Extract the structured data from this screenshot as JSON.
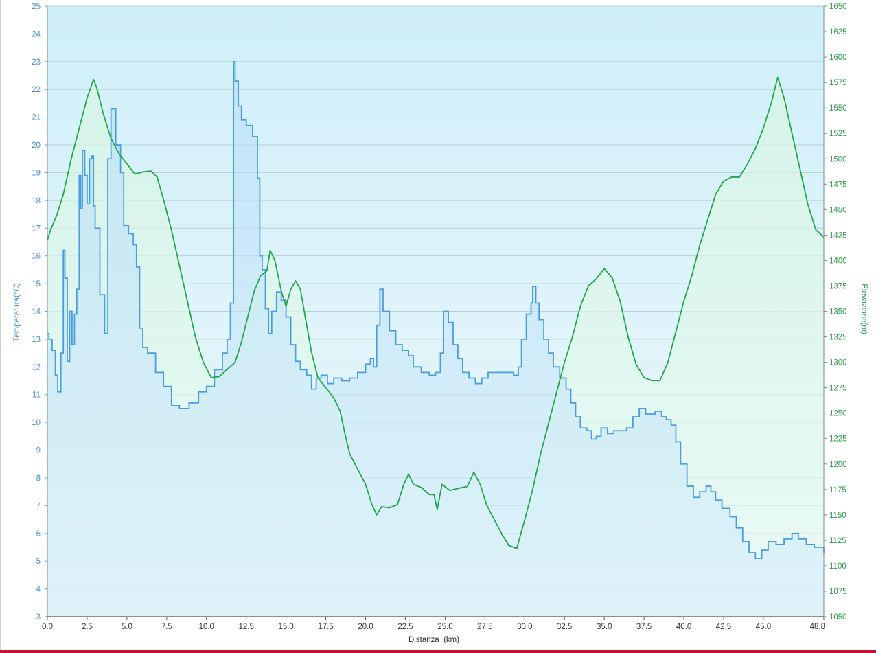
{
  "chart_data": {
    "type": "area",
    "title": "",
    "xlabel": "Distanza  (km)",
    "ylabel_left": "Temperatura(°C)",
    "ylabel_right": "Elevazione(m)",
    "xlim": [
      0,
      48.8
    ],
    "ylim_left": [
      3,
      25
    ],
    "ylim_right": [
      1050,
      1650
    ],
    "x_ticks": [
      "0.0",
      "2.5",
      "5.0",
      "7.5",
      "10.0",
      "12.5",
      "15.0",
      "17.5",
      "20.0",
      "22.5",
      "25.0",
      "27.5",
      "30.0",
      "32.5",
      "35.0",
      "37.5",
      "40.0",
      "42.5",
      "45.0",
      "48.8"
    ],
    "y_left_ticks": [
      "3",
      "4",
      "5",
      "6",
      "7",
      "8",
      "9",
      "10",
      "11",
      "12",
      "13",
      "14",
      "15",
      "16",
      "17",
      "18",
      "19",
      "20",
      "21",
      "22",
      "23",
      "24",
      "25"
    ],
    "y_right_ticks": [
      "1050",
      "1075",
      "1100",
      "1125",
      "1150",
      "1175",
      "1200",
      "1225",
      "1250",
      "1275",
      "1300",
      "1325",
      "1350",
      "1375",
      "1400",
      "1425",
      "1450",
      "1475",
      "1500",
      "1525",
      "1550",
      "1575",
      "1600",
      "1625",
      "1650"
    ],
    "grid": true,
    "series": [
      {
        "name": "Temperatura",
        "axis": "left",
        "color": "#4a9de0",
        "fill": "#bfe4f6",
        "step": true,
        "points": [
          [
            0.0,
            13.2
          ],
          [
            0.1,
            13.0
          ],
          [
            0.3,
            12.6
          ],
          [
            0.5,
            11.7
          ],
          [
            0.65,
            11.1
          ],
          [
            0.85,
            12.5
          ],
          [
            1.0,
            16.2
          ],
          [
            1.1,
            15.2
          ],
          [
            1.25,
            12.2
          ],
          [
            1.4,
            14.0
          ],
          [
            1.55,
            12.8
          ],
          [
            1.7,
            13.9
          ],
          [
            1.85,
            14.8
          ],
          [
            2.0,
            18.9
          ],
          [
            2.1,
            17.7
          ],
          [
            2.2,
            19.8
          ],
          [
            2.35,
            18.9
          ],
          [
            2.5,
            17.9
          ],
          [
            2.65,
            19.5
          ],
          [
            2.8,
            19.6
          ],
          [
            2.9,
            17.8
          ],
          [
            3.0,
            17.0
          ],
          [
            3.3,
            14.6
          ],
          [
            3.6,
            13.2
          ],
          [
            3.8,
            19.5
          ],
          [
            4.0,
            21.3
          ],
          [
            4.3,
            20.0
          ],
          [
            4.6,
            19.0
          ],
          [
            4.8,
            17.1
          ],
          [
            5.1,
            16.8
          ],
          [
            5.4,
            16.4
          ],
          [
            5.6,
            15.6
          ],
          [
            5.8,
            13.4
          ],
          [
            6.0,
            12.7
          ],
          [
            6.3,
            12.5
          ],
          [
            6.8,
            11.8
          ],
          [
            7.3,
            11.3
          ],
          [
            7.8,
            10.6
          ],
          [
            8.3,
            10.5
          ],
          [
            8.9,
            10.7
          ],
          [
            9.5,
            11.1
          ],
          [
            10.0,
            11.3
          ],
          [
            10.5,
            11.9
          ],
          [
            11.0,
            12.5
          ],
          [
            11.3,
            13.0
          ],
          [
            11.5,
            14.3
          ],
          [
            11.7,
            23.0
          ],
          [
            11.8,
            22.3
          ],
          [
            12.0,
            21.4
          ],
          [
            12.2,
            20.9
          ],
          [
            12.5,
            20.7
          ],
          [
            12.9,
            20.3
          ],
          [
            13.2,
            18.8
          ],
          [
            13.35,
            16.0
          ],
          [
            13.5,
            15.5
          ],
          [
            13.7,
            14.1
          ],
          [
            13.9,
            13.2
          ],
          [
            14.1,
            14.0
          ],
          [
            14.4,
            14.7
          ],
          [
            14.7,
            14.4
          ],
          [
            15.0,
            13.8
          ],
          [
            15.3,
            12.8
          ],
          [
            15.6,
            12.2
          ],
          [
            15.9,
            11.9
          ],
          [
            16.3,
            11.7
          ],
          [
            16.6,
            11.2
          ],
          [
            16.9,
            11.6
          ],
          [
            17.2,
            11.7
          ],
          [
            17.6,
            11.4
          ],
          [
            18.0,
            11.6
          ],
          [
            18.5,
            11.5
          ],
          [
            19.0,
            11.6
          ],
          [
            19.5,
            11.8
          ],
          [
            20.0,
            12.1
          ],
          [
            20.3,
            12.3
          ],
          [
            20.5,
            12.0
          ],
          [
            20.7,
            13.5
          ],
          [
            20.9,
            14.8
          ],
          [
            21.1,
            14.0
          ],
          [
            21.5,
            13.3
          ],
          [
            21.9,
            12.8
          ],
          [
            22.3,
            12.6
          ],
          [
            22.7,
            12.4
          ],
          [
            23.0,
            12.0
          ],
          [
            23.5,
            11.8
          ],
          [
            24.0,
            11.7
          ],
          [
            24.4,
            11.8
          ],
          [
            24.7,
            12.5
          ],
          [
            24.9,
            14.0
          ],
          [
            25.2,
            13.6
          ],
          [
            25.5,
            12.8
          ],
          [
            25.8,
            12.3
          ],
          [
            26.1,
            11.8
          ],
          [
            26.5,
            11.6
          ],
          [
            26.9,
            11.4
          ],
          [
            27.3,
            11.6
          ],
          [
            27.7,
            11.8
          ],
          [
            28.5,
            11.8
          ],
          [
            29.3,
            11.7
          ],
          [
            29.6,
            12.0
          ],
          [
            29.8,
            13.0
          ],
          [
            30.1,
            13.9
          ],
          [
            30.4,
            14.3
          ],
          [
            30.5,
            14.9
          ],
          [
            30.7,
            14.3
          ],
          [
            30.9,
            13.7
          ],
          [
            31.2,
            13.0
          ],
          [
            31.5,
            12.5
          ],
          [
            31.8,
            12.0
          ],
          [
            32.2,
            11.6
          ],
          [
            32.6,
            11.2
          ],
          [
            32.9,
            10.7
          ],
          [
            33.2,
            10.2
          ],
          [
            33.5,
            9.8
          ],
          [
            33.9,
            9.7
          ],
          [
            34.2,
            9.4
          ],
          [
            34.5,
            9.5
          ],
          [
            34.8,
            9.8
          ],
          [
            35.2,
            9.6
          ],
          [
            35.6,
            9.7
          ],
          [
            36.0,
            9.7
          ],
          [
            36.4,
            9.8
          ],
          [
            36.8,
            10.2
          ],
          [
            37.2,
            10.5
          ],
          [
            37.6,
            10.3
          ],
          [
            38.2,
            10.4
          ],
          [
            38.6,
            10.2
          ],
          [
            38.9,
            10.1
          ],
          [
            39.2,
            9.9
          ],
          [
            39.5,
            9.3
          ],
          [
            39.8,
            8.5
          ],
          [
            40.2,
            7.7
          ],
          [
            40.6,
            7.3
          ],
          [
            41.0,
            7.5
          ],
          [
            41.4,
            7.7
          ],
          [
            41.7,
            7.5
          ],
          [
            42.0,
            7.2
          ],
          [
            42.4,
            6.9
          ],
          [
            42.9,
            6.6
          ],
          [
            43.3,
            6.2
          ],
          [
            43.7,
            5.7
          ],
          [
            44.1,
            5.3
          ],
          [
            44.5,
            5.1
          ],
          [
            44.9,
            5.4
          ],
          [
            45.3,
            5.7
          ],
          [
            45.8,
            5.6
          ],
          [
            46.3,
            5.8
          ],
          [
            46.8,
            6.0
          ],
          [
            47.2,
            5.8
          ],
          [
            47.7,
            5.6
          ],
          [
            48.2,
            5.5
          ],
          [
            48.8,
            5.3
          ]
        ]
      },
      {
        "name": "Elevazione",
        "axis": "right",
        "color": "#22a64a",
        "fill": "#dcf5e8",
        "step": false,
        "points": [
          [
            0.0,
            1420
          ],
          [
            0.2,
            1430
          ],
          [
            0.6,
            1445
          ],
          [
            1.0,
            1465
          ],
          [
            1.5,
            1500
          ],
          [
            2.0,
            1530
          ],
          [
            2.5,
            1560
          ],
          [
            2.9,
            1578
          ],
          [
            3.1,
            1570
          ],
          [
            3.5,
            1545
          ],
          [
            4.0,
            1520
          ],
          [
            4.5,
            1505
          ],
          [
            5.0,
            1495
          ],
          [
            5.5,
            1485
          ],
          [
            6.0,
            1487
          ],
          [
            6.5,
            1488
          ],
          [
            6.9,
            1482
          ],
          [
            7.3,
            1460
          ],
          [
            7.8,
            1430
          ],
          [
            8.3,
            1395
          ],
          [
            8.8,
            1360
          ],
          [
            9.3,
            1325
          ],
          [
            9.8,
            1300
          ],
          [
            10.3,
            1285
          ],
          [
            10.8,
            1286
          ],
          [
            11.3,
            1293
          ],
          [
            11.8,
            1300
          ],
          [
            12.2,
            1320
          ],
          [
            12.6,
            1345
          ],
          [
            13.0,
            1370
          ],
          [
            13.4,
            1385
          ],
          [
            13.8,
            1390
          ],
          [
            14.0,
            1410
          ],
          [
            14.3,
            1400
          ],
          [
            14.7,
            1370
          ],
          [
            15.0,
            1355
          ],
          [
            15.3,
            1372
          ],
          [
            15.6,
            1380
          ],
          [
            15.9,
            1372
          ],
          [
            16.2,
            1345
          ],
          [
            16.6,
            1310
          ],
          [
            17.0,
            1285
          ],
          [
            17.5,
            1275
          ],
          [
            18.0,
            1265
          ],
          [
            18.4,
            1252
          ],
          [
            18.7,
            1230
          ],
          [
            19.0,
            1210
          ],
          [
            19.5,
            1195
          ],
          [
            20.0,
            1180
          ],
          [
            20.4,
            1160
          ],
          [
            20.7,
            1150
          ],
          [
            21.0,
            1158
          ],
          [
            21.5,
            1157
          ],
          [
            22.0,
            1160
          ],
          [
            22.4,
            1180
          ],
          [
            22.7,
            1190
          ],
          [
            23.0,
            1180
          ],
          [
            23.5,
            1177
          ],
          [
            24.0,
            1170
          ],
          [
            24.3,
            1170
          ],
          [
            24.5,
            1155
          ],
          [
            24.8,
            1180
          ],
          [
            25.3,
            1174
          ],
          [
            25.8,
            1176
          ],
          [
            26.4,
            1178
          ],
          [
            26.8,
            1192
          ],
          [
            27.2,
            1180
          ],
          [
            27.6,
            1160
          ],
          [
            28.1,
            1145
          ],
          [
            28.6,
            1130
          ],
          [
            29.0,
            1120
          ],
          [
            29.5,
            1117
          ],
          [
            30.0,
            1145
          ],
          [
            30.5,
            1175
          ],
          [
            31.0,
            1210
          ],
          [
            31.5,
            1240
          ],
          [
            32.0,
            1270
          ],
          [
            32.5,
            1300
          ],
          [
            33.0,
            1325
          ],
          [
            33.5,
            1355
          ],
          [
            34.0,
            1375
          ],
          [
            34.5,
            1382
          ],
          [
            35.0,
            1392
          ],
          [
            35.5,
            1383
          ],
          [
            36.0,
            1360
          ],
          [
            36.5,
            1325
          ],
          [
            37.0,
            1298
          ],
          [
            37.5,
            1285
          ],
          [
            38.0,
            1282
          ],
          [
            38.5,
            1282
          ],
          [
            39.0,
            1300
          ],
          [
            39.5,
            1330
          ],
          [
            40.0,
            1360
          ],
          [
            40.5,
            1385
          ],
          [
            41.0,
            1415
          ],
          [
            41.5,
            1440
          ],
          [
            42.0,
            1465
          ],
          [
            42.5,
            1478
          ],
          [
            43.0,
            1482
          ],
          [
            43.5,
            1482
          ],
          [
            44.0,
            1495
          ],
          [
            44.5,
            1510
          ],
          [
            45.0,
            1530
          ],
          [
            45.5,
            1555
          ],
          [
            45.9,
            1580
          ],
          [
            46.3,
            1560
          ],
          [
            46.8,
            1525
          ],
          [
            47.3,
            1490
          ],
          [
            47.8,
            1455
          ],
          [
            48.3,
            1430
          ],
          [
            48.8,
            1423
          ]
        ]
      }
    ]
  }
}
